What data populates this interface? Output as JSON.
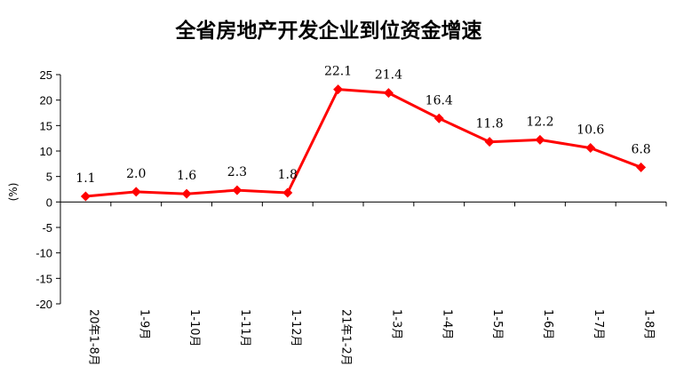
{
  "chart_data": {
    "type": "line",
    "title": "全省房地产开发企业到位资金增速",
    "ylabel": "(%)",
    "xlabel": "",
    "categories": [
      "20年1-8月",
      "1-9月",
      "1-10月",
      "1-11月",
      "1-12月",
      "21年1-2月",
      "1-3月",
      "1-4月",
      "1-5月",
      "1-6月",
      "1-7月",
      "1-8月"
    ],
    "series": [
      {
        "values": [
          1.1,
          2.0,
          1.6,
          2.3,
          1.8,
          22.1,
          21.4,
          16.4,
          11.8,
          12.2,
          10.6,
          6.8
        ],
        "data_labels": [
          "1.1",
          "2.0",
          "1.6",
          "2.3",
          "1.8",
          "22.1",
          "21.4",
          "16.4",
          "11.8",
          "12.2",
          "10.6",
          "6.8"
        ],
        "color": "#ff0000",
        "marker": "diamond"
      }
    ],
    "ylim": [
      -20,
      25
    ],
    "yticks": [
      -20,
      -15,
      -10,
      -5,
      0,
      5,
      10,
      15,
      20,
      25
    ],
    "grid": false,
    "legend": "none"
  }
}
